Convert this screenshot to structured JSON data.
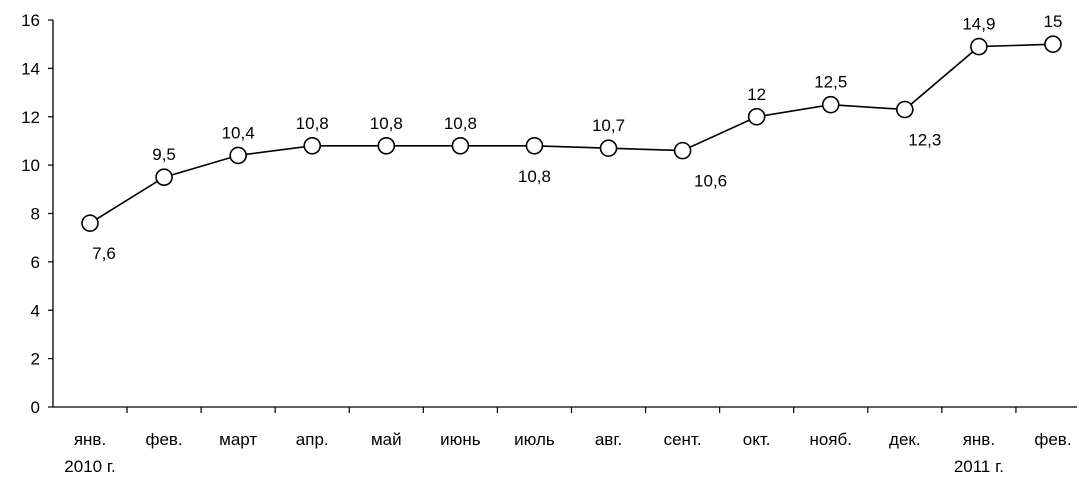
{
  "chart_data": {
    "type": "line",
    "title": "",
    "xlabel": "",
    "ylabel": "",
    "ylim": [
      0,
      16
    ],
    "yticks": [
      "0",
      "2",
      "4",
      "6",
      "8",
      "10",
      "12",
      "14",
      "16"
    ],
    "categories": [
      [
        "янв.",
        "2010 г."
      ],
      [
        "фев."
      ],
      [
        "март"
      ],
      [
        "апр."
      ],
      [
        "май"
      ],
      [
        "июнь"
      ],
      [
        "июль"
      ],
      [
        "авг."
      ],
      [
        "сент."
      ],
      [
        "окт."
      ],
      [
        "нояб."
      ],
      [
        "дек."
      ],
      [
        "янв.",
        "2011 г."
      ],
      [
        "фев."
      ]
    ],
    "series": [
      {
        "values": [
          7.6,
          9.5,
          10.4,
          10.8,
          10.8,
          10.8,
          10.8,
          10.7,
          10.6,
          12,
          12.5,
          12.3,
          14.9,
          15
        ],
        "labels": [
          "7,6",
          "9,5",
          "10,4",
          "10,8",
          "10,8",
          "10,8",
          "10,8",
          "10,7",
          "10,6",
          "12",
          "12,5",
          "12,3",
          "14,9",
          "15"
        ],
        "label_position": [
          "below",
          "above",
          "above",
          "above",
          "above",
          "above",
          "below",
          "above",
          "below",
          "above",
          "above",
          "below",
          "above",
          "above"
        ]
      }
    ],
    "grid": false,
    "legend": "none",
    "colors": {
      "line": "#000000",
      "marker_fill": "#ffffff"
    }
  }
}
